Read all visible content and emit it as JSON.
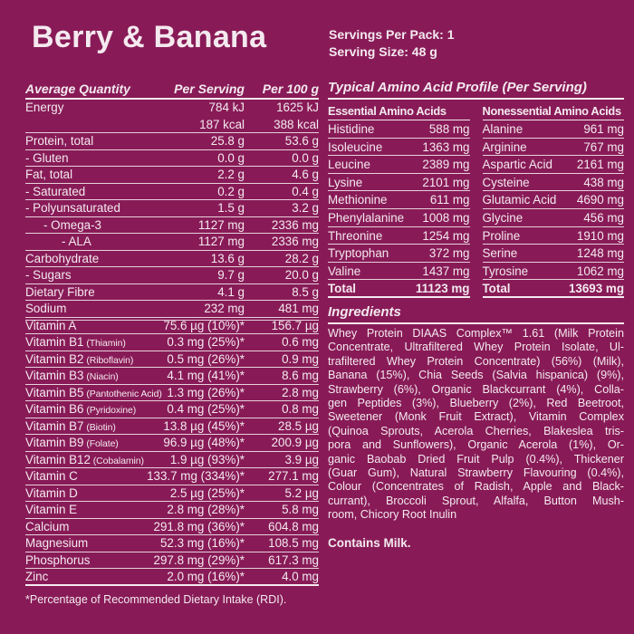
{
  "page": {
    "background_color": "#881b57",
    "text_color": "#f4e9ef"
  },
  "title": "Berry & Banana",
  "pack": {
    "servings_per_pack": "Servings Per Pack: 1",
    "serving_size": "Serving Size: 48 g"
  },
  "nutrition_table": {
    "headers": {
      "col1": "Average Quantity",
      "col2": "Per Serving",
      "col3": "Per 100 g"
    },
    "rows": [
      {
        "label": "Energy",
        "ps": "784 kJ",
        "p100": "1625 kJ",
        "nob": true
      },
      {
        "label": "",
        "ps": "187 kcal",
        "p100": "388 kcal"
      },
      {
        "label": "Protein, total",
        "ps": "25.8 g",
        "p100": "53.6 g"
      },
      {
        "label": "- Gluten",
        "ps": "0.0 g",
        "p100": "0.0 g"
      },
      {
        "label": "Fat, total",
        "ps": "2.2 g",
        "p100": "4.6 g"
      },
      {
        "label": "- Saturated",
        "ps": "0.2 g",
        "p100": "0.4 g"
      },
      {
        "label": "- Polyunsaturated",
        "ps": "1.5 g",
        "p100": "3.2 g"
      },
      {
        "label": "- Omega-3",
        "indent": 1,
        "ps": "1127 mg",
        "p100": "2336 mg"
      },
      {
        "label": "- ALA",
        "indent": 2,
        "ps": "1127 mg",
        "p100": "2336 mg"
      },
      {
        "label": "Carbohydrate",
        "ps": "13.6 g",
        "p100": "28.2 g"
      },
      {
        "label": "- Sugars",
        "ps": "9.7 g",
        "p100": "20.0 g"
      },
      {
        "label": "Dietary Fibre",
        "ps": "4.1 g",
        "p100": "8.5 g"
      },
      {
        "label": "Sodium",
        "ps": "232 mg",
        "p100": "481 mg",
        "sep": "double"
      },
      {
        "label": "Vitamin A",
        "ps": "75.6 µg (10%)*",
        "p100": "156.7 µg"
      },
      {
        "label": "Vitamin B1",
        "note": "(Thiamin)",
        "ps": "0.3 mg (25%)*",
        "p100": "0.6 mg"
      },
      {
        "label": "Vitamin B2",
        "note": "(Riboflavin)",
        "ps": "0.5 mg (26%)*",
        "p100": "0.9 mg"
      },
      {
        "label": "Vitamin B3",
        "note": "(Niacin)",
        "ps": "4.1 mg (41%)*",
        "p100": "8.6 mg"
      },
      {
        "label": "Vitamin B5",
        "note": "(Pantothenic Acid)",
        "ps": "1.3 mg (26%)*",
        "p100": "2.8 mg"
      },
      {
        "label": "Vitamin B6",
        "note": "(Pyridoxine)",
        "ps": "0.4 mg (25%)*",
        "p100": "0.8 mg"
      },
      {
        "label": "Vitamin B7",
        "note": "(Biotin)",
        "ps": "13.8 µg (45%)*",
        "p100": "28.5 µg"
      },
      {
        "label": "Vitamin B9",
        "note": "(Folate)",
        "ps": "96.9 µg (48%)*",
        "p100": "200.9 µg"
      },
      {
        "label": "Vitamin B12",
        "note": "(Cobalamin)",
        "ps": "1.9 µg (93%)*",
        "p100": "3.9 µg"
      },
      {
        "label": "Vitamin C",
        "ps": "133.7 mg (334%)*",
        "p100": "277.1 mg"
      },
      {
        "label": "Vitamin D",
        "ps": "2.5 µg (25%)*",
        "p100": "5.2 µg"
      },
      {
        "label": "Vitamin E",
        "ps": "2.8 mg (28%)*",
        "p100": "5.8 mg"
      },
      {
        "label": "Calcium",
        "ps": "291.8 mg (36%)*",
        "p100": "604.8 mg"
      },
      {
        "label": "Magnesium",
        "ps": "52.3 mg (16%)*",
        "p100": "108.5 mg"
      },
      {
        "label": "Phosphorus",
        "ps": "297.8 mg (29%)*",
        "p100": "617.3 mg"
      },
      {
        "label": "Zinc",
        "ps": "2.0 mg (16%)*",
        "p100": "4.0 mg",
        "sep": "thick"
      }
    ],
    "footnote": "*Percentage of Recommended Dietary Intake (RDI)."
  },
  "amino_profile": {
    "title": "Typical Amino Acid Profile (Per Serving)",
    "essential": {
      "header": "Essential Amino Acids",
      "rows": [
        [
          "Histidine",
          "588 mg"
        ],
        [
          "Isoleucine",
          "1363 mg"
        ],
        [
          "Leucine",
          "2389 mg"
        ],
        [
          "Lysine",
          "2101 mg"
        ],
        [
          "Methionine",
          "611 mg"
        ],
        [
          "Phenylalanine",
          "1008 mg"
        ],
        [
          "Threonine",
          "1254 mg"
        ],
        [
          "Tryptophan",
          "372 mg"
        ],
        [
          "Valine",
          "1437 mg"
        ]
      ],
      "total": [
        "Total",
        "11123 mg"
      ]
    },
    "nonessential": {
      "header": "Nonessential Amino Acids",
      "rows": [
        [
          "Alanine",
          "961 mg"
        ],
        [
          "Arginine",
          "767 mg"
        ],
        [
          "Aspartic Acid",
          "2161 mg"
        ],
        [
          "Cysteine",
          "438 mg"
        ],
        [
          "Glutamic Acid",
          "4690 mg"
        ],
        [
          "Glycine",
          "456 mg"
        ],
        [
          "Proline",
          "1910 mg"
        ],
        [
          "Serine",
          "1248 mg"
        ],
        [
          "Tyrosine",
          "1062 mg"
        ]
      ],
      "total": [
        "Total",
        "13693 mg"
      ]
    }
  },
  "ingredients": {
    "title": "Ingredients",
    "lines": [
      "Whey Protein DIAAS Complex™ 1.61 (Milk Protein",
      "Concentrate, Ultrafiltered Whey Protein Isolate, Ul-",
      "trafiltered Whey Protein Concentrate) (56%) (Milk),",
      "Banana (15%), Chia Seeds (Salvia hispanica) (9%),",
      "Strawberry (6%), Organic Blackcurrant (4%), Colla-",
      "gen Peptides (3%), Blueberry (2%), Red Beetroot,",
      "Sweetener (Monk Fruit Extract), Vitamin Complex",
      "(Quinoa Sprouts, Acerola Cherries, Blakeslea tris-",
      "pora and Sunflowers), Organic Acerola (1%), Or-",
      "ganic Baobab Dried Fruit Pulp (0.4%), Thickener",
      "(Guar Gum), Natural Strawberry Flavouring (0.4%),",
      "Colour (Concentrates of Radish, Apple and Black-",
      "currant), Broccoli Sprout, Alfalfa, Button Mush-",
      "room, Chicory Root Inulin"
    ],
    "contains": "Contains Milk."
  }
}
